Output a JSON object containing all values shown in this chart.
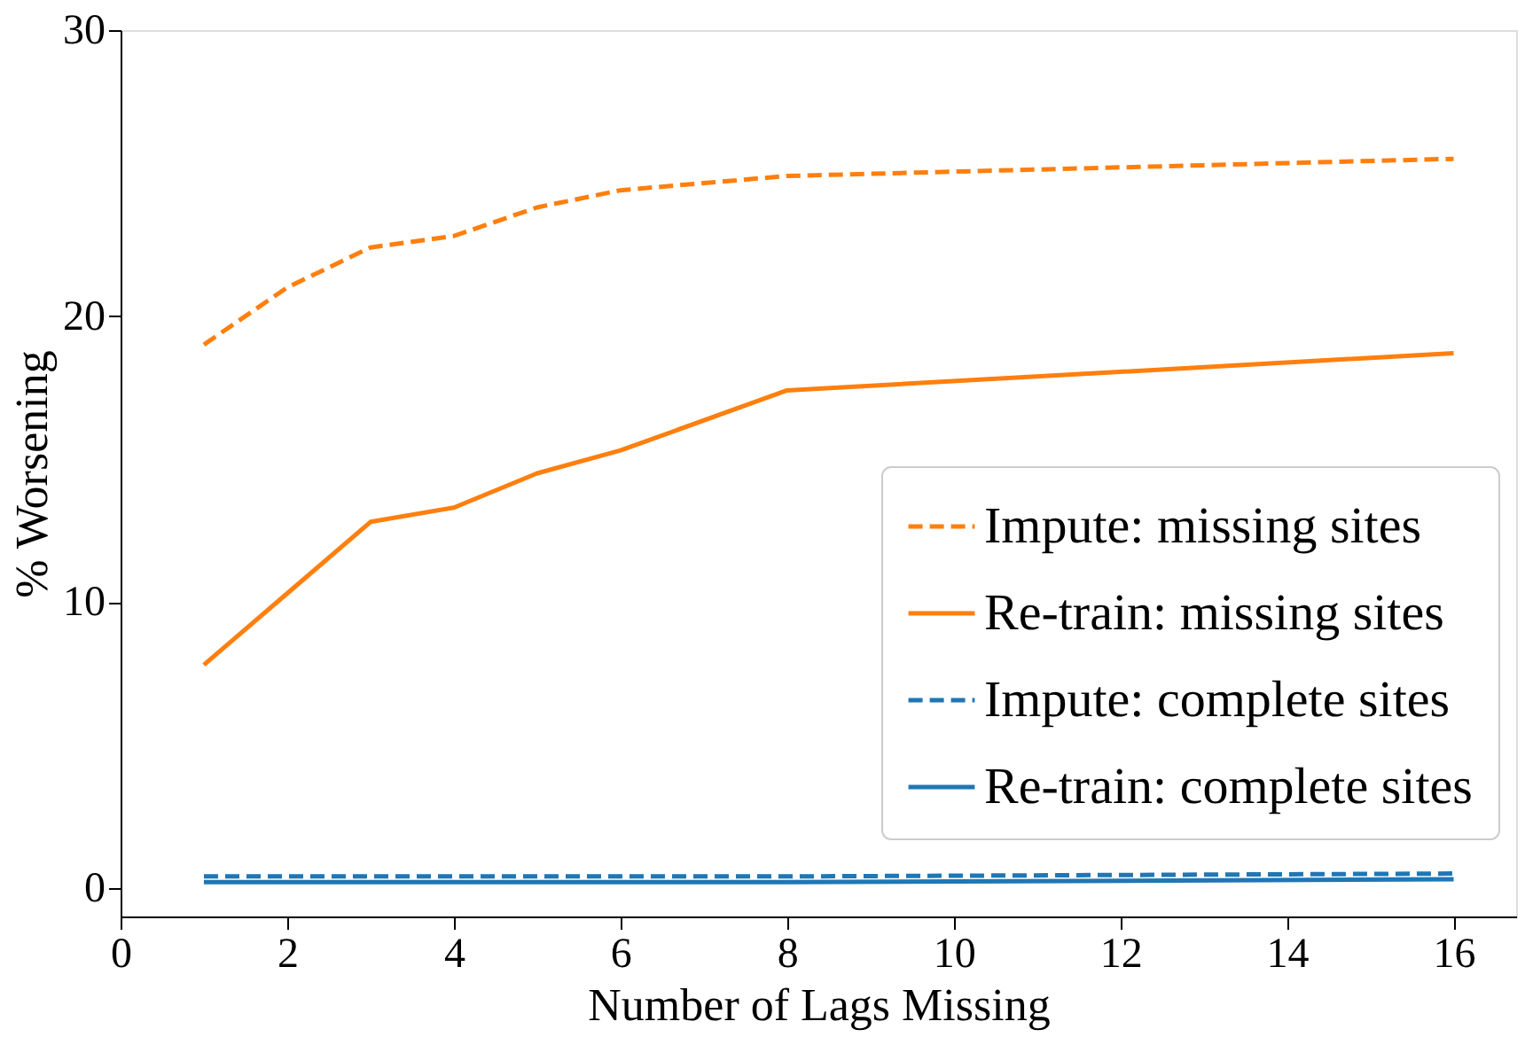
{
  "chart_data": {
    "type": "line",
    "xlabel": "Number of Lags Missing",
    "ylabel": "% Worsening",
    "x": [
      1,
      2,
      3,
      4,
      5,
      6,
      8,
      16
    ],
    "series": [
      {
        "name": "Impute: missing sites",
        "color": "#ff7f0e",
        "line_style": "dashed",
        "values": [
          19.0,
          21.0,
          22.4,
          22.8,
          23.8,
          24.4,
          24.9,
          25.5
        ]
      },
      {
        "name": "Re-train: missing sites",
        "color": "#ff7f0e",
        "line_style": "solid",
        "values": [
          7.8,
          10.3,
          12.8,
          13.3,
          14.5,
          15.3,
          17.4,
          18.7
        ]
      },
      {
        "name": "Impute: complete sites",
        "color": "#1f77b4",
        "line_style": "dashed",
        "values": [
          0.4,
          0.4,
          0.4,
          0.4,
          0.4,
          0.4,
          0.4,
          0.5
        ]
      },
      {
        "name": "Re-train: complete sites",
        "color": "#1f77b4",
        "line_style": "solid",
        "values": [
          0.2,
          0.2,
          0.2,
          0.2,
          0.2,
          0.2,
          0.2,
          0.3
        ]
      }
    ],
    "xlim": [
      0,
      16.75
    ],
    "ylim": [
      -1,
      30
    ],
    "xticks": [
      0,
      2,
      4,
      6,
      8,
      10,
      12,
      14,
      16
    ],
    "yticks": [
      0,
      10,
      20,
      30
    ],
    "grid": false,
    "legend": "bottom right",
    "marker": "none"
  }
}
